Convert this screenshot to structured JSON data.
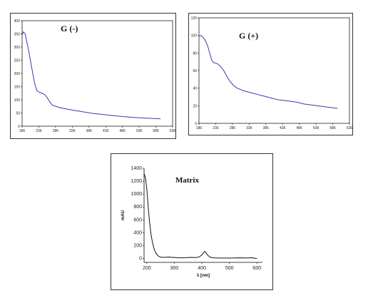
{
  "chart_data": [
    {
      "type": "line",
      "title": "G (-)",
      "xlabel": "",
      "ylabel": "",
      "xlim": [
        186,
        636
      ],
      "ylim": [
        0,
        400
      ],
      "xticks": [
        "186",
        "236",
        "286",
        "336",
        "386",
        "436",
        "486",
        "536",
        "586",
        "636"
      ],
      "yticks": [
        "0",
        "50",
        "100",
        "150",
        "200",
        "250",
        "300",
        "350",
        "400"
      ],
      "color": "#3a3ab0",
      "series": [
        {
          "x": [
            186,
            190,
            195,
            200,
            205,
            210,
            215,
            220,
            225,
            230,
            235,
            240,
            245,
            250,
            255,
            260,
            265,
            270,
            275,
            280,
            290,
            300,
            320,
            340,
            360,
            380,
            400,
            430,
            460,
            490,
            520,
            550,
            580,
            600
          ],
          "y": [
            345,
            358,
            350,
            320,
            290,
            255,
            220,
            185,
            155,
            135,
            130,
            128,
            125,
            122,
            118,
            110,
            100,
            90,
            82,
            78,
            74,
            70,
            65,
            60,
            56,
            52,
            48,
            44,
            40,
            36,
            33,
            31,
            29,
            28
          ]
        }
      ]
    },
    {
      "type": "line",
      "title": "G (+)",
      "xlabel": "",
      "ylabel": "",
      "xlim": [
        186,
        636
      ],
      "ylim": [
        0,
        120
      ],
      "xticks": [
        "186",
        "236",
        "286",
        "336",
        "386",
        "436",
        "486",
        "536",
        "586",
        "636"
      ],
      "yticks": [
        "0",
        "20",
        "40",
        "60",
        "80",
        "100",
        "120"
      ],
      "color": "#3a3ab0",
      "series": [
        {
          "x": [
            186,
            192,
            198,
            205,
            212,
            218,
            224,
            230,
            240,
            250,
            260,
            270,
            280,
            290,
            300,
            320,
            340,
            360,
            380,
            400,
            420,
            440,
            460,
            480,
            500,
            520,
            540,
            560,
            580,
            600
          ],
          "y": [
            99,
            100,
            98,
            94,
            88,
            80,
            72,
            69,
            68,
            65,
            60,
            53,
            47,
            43,
            40,
            37,
            35,
            33,
            31,
            29,
            27,
            26,
            25,
            24,
            22,
            21,
            20,
            19,
            18,
            17
          ]
        }
      ]
    },
    {
      "type": "line",
      "title": "Matrix",
      "xlabel": "λ [nm]",
      "ylabel": "mAU",
      "xlim": [
        190,
        620
      ],
      "ylim": [
        -60,
        1400
      ],
      "xticks": [
        "200",
        "300",
        "400",
        "500",
        "600"
      ],
      "yticks": [
        "0",
        "200",
        "400",
        "600",
        "800",
        "1000",
        "1200",
        "1400"
      ],
      "color": "#111111",
      "series": [
        {
          "x": [
            190,
            195,
            200,
            205,
            210,
            215,
            220,
            225,
            230,
            235,
            240,
            245,
            250,
            260,
            280,
            300,
            320,
            340,
            360,
            380,
            390,
            400,
            405,
            410,
            415,
            420,
            430,
            440,
            460,
            500,
            540,
            560,
            580,
            600
          ],
          "y": [
            1320,
            1250,
            1080,
            800,
            560,
            380,
            260,
            170,
            110,
            70,
            45,
            30,
            22,
            18,
            22,
            16,
            10,
            12,
            18,
            15,
            25,
            55,
            85,
            110,
            90,
            55,
            20,
            10,
            8,
            6,
            10,
            8,
            12,
            0
          ]
        }
      ]
    }
  ]
}
